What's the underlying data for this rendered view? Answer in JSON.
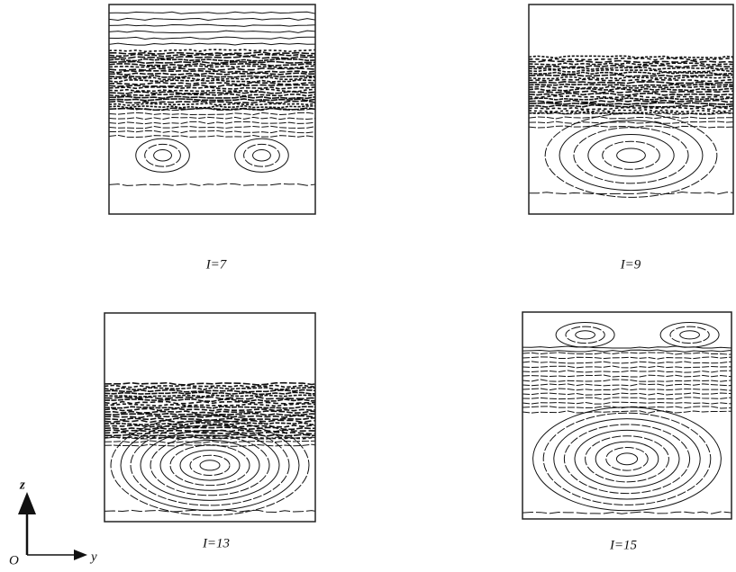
{
  "panels": [
    {
      "label": "I=7"
    },
    {
      "label": "I=9"
    },
    {
      "label": "I=13"
    },
    {
      "label": "I=15"
    }
  ],
  "axes": {
    "vertical": "z",
    "origin": "O",
    "horizontal": "y"
  }
}
